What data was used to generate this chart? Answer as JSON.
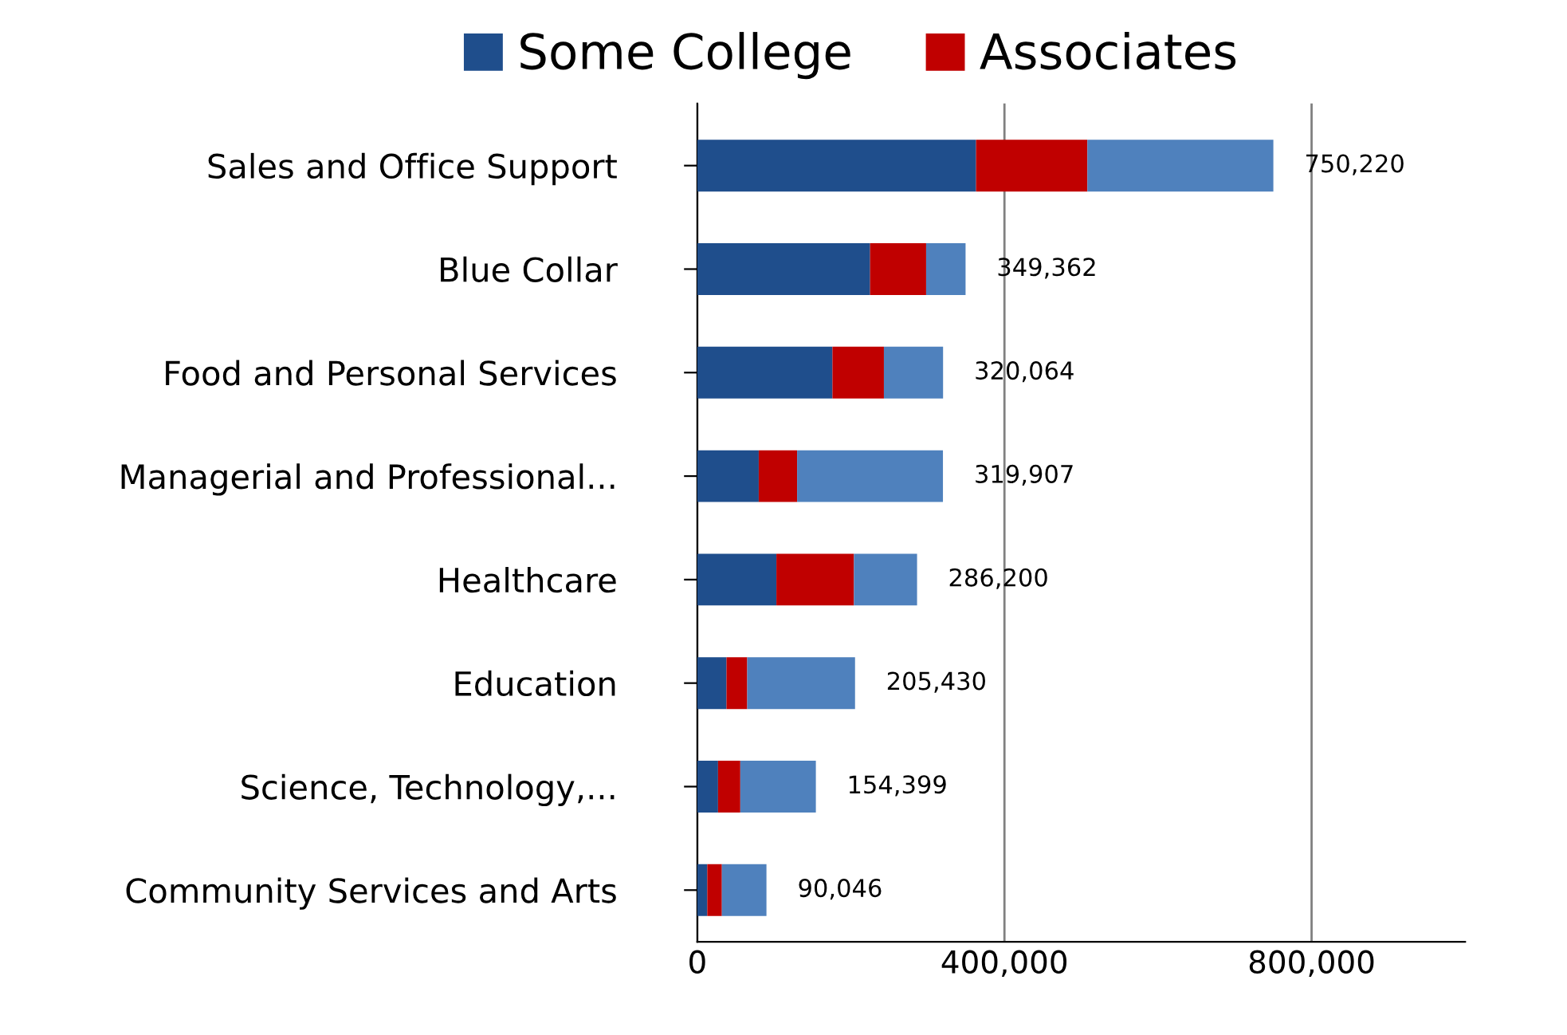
{
  "chart_data": {
    "type": "bar",
    "orientation": "horizontal",
    "stacked": true,
    "categories": [
      "Sales and Office Support",
      "Blue Collar",
      "Food and Personal Services",
      "Managerial and Professional...",
      "Healthcare",
      "Education",
      "Science, Technology,...",
      "Community Services and Arts"
    ],
    "series": [
      {
        "name": "Some College",
        "color": "#1f4e8c",
        "values": [
          363000,
          225000,
          176000,
          80000,
          103000,
          38000,
          27000,
          13000
        ]
      },
      {
        "name": "Associates",
        "color": "#c00000",
        "values": [
          145000,
          73000,
          67000,
          50000,
          101000,
          27000,
          29000,
          19000
        ]
      },
      {
        "color": "#4f81bd",
        "values": [
          242220,
          51362,
          77064,
          189907,
          82200,
          140430,
          98399,
          58046
        ]
      }
    ],
    "totals": [
      "750,220",
      "349,362",
      "320,064",
      "319,907",
      "286,200",
      "205,430",
      "154,399",
      "90,046"
    ],
    "xlim": [
      0,
      1000000
    ],
    "xticks": [
      {
        "value": 0,
        "label": "0"
      },
      {
        "value": 400000,
        "label": "400,000"
      },
      {
        "value": 800000,
        "label": "800,000"
      }
    ],
    "grid": "x",
    "legend": "top"
  }
}
